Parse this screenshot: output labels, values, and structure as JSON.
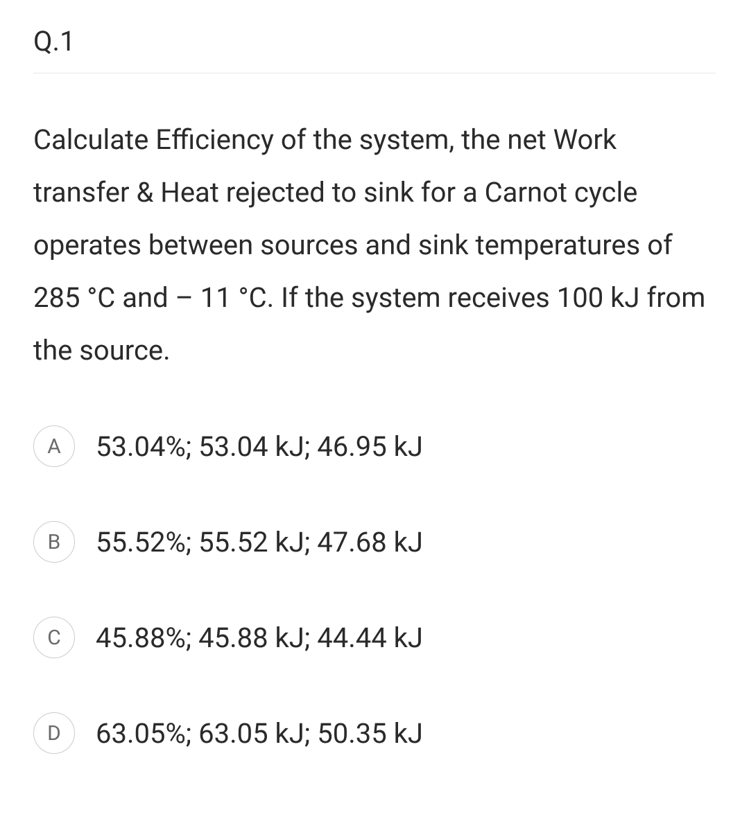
{
  "question": {
    "number": "Q.1",
    "text": "Calculate Efficiency of the system, the net Work transfer & Heat rejected to sink for a Carnot cycle operates between sources and sink temperatures of 285 °C and – 11 °C. If the system receives 100 kJ from the source."
  },
  "options": [
    {
      "letter": "A",
      "text": "53.04%; 53.04 kJ; 46.95 kJ"
    },
    {
      "letter": "B",
      "text": "55.52%; 55.52 kJ; 47.68 kJ"
    },
    {
      "letter": "C",
      "text": "45.88%; 45.88 kJ; 44.44 kJ"
    },
    {
      "letter": "D",
      "text": "63.05%; 63.05 kJ; 50.35 kJ"
    }
  ],
  "styling": {
    "background_color": "#ffffff",
    "text_color": "#2a2a2a",
    "circle_border_color": "#cccccc",
    "circle_text_color": "#6a6a6a",
    "divider_color": "#e8e8e8",
    "question_fontsize": 40,
    "option_fontsize": 40,
    "circle_fontsize": 30,
    "circle_size": 60
  }
}
